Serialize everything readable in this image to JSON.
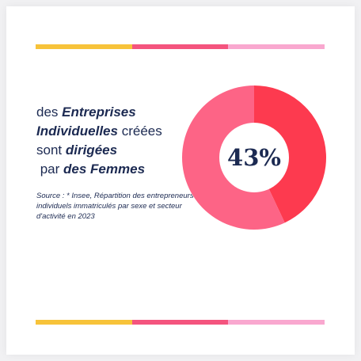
{
  "stripe_colors": [
    "#f7c33a",
    "#f4547e",
    "#f9a8cf"
  ],
  "headline": {
    "l1_plain": "des ",
    "l1_bold": "Entreprises",
    "l2_bold": "Individuelles",
    "l2_plain": " créées",
    "l3_plain": "sont ",
    "l3_bold": "dirigées",
    "l4_plain": " par ",
    "l4_bold": "des Femmes"
  },
  "source": {
    "label": "Source : ",
    "text": "* Insee, Répartition des entrepreneurs individuels immatriculés par sexe et secteur d'activité en 2023"
  },
  "chart_data": {
    "type": "pie",
    "style": "donut",
    "center_label": "43%",
    "slices": [
      {
        "value": 43,
        "color": "#fd3a4f"
      },
      {
        "value": 57,
        "color": "#fd6486"
      }
    ]
  }
}
